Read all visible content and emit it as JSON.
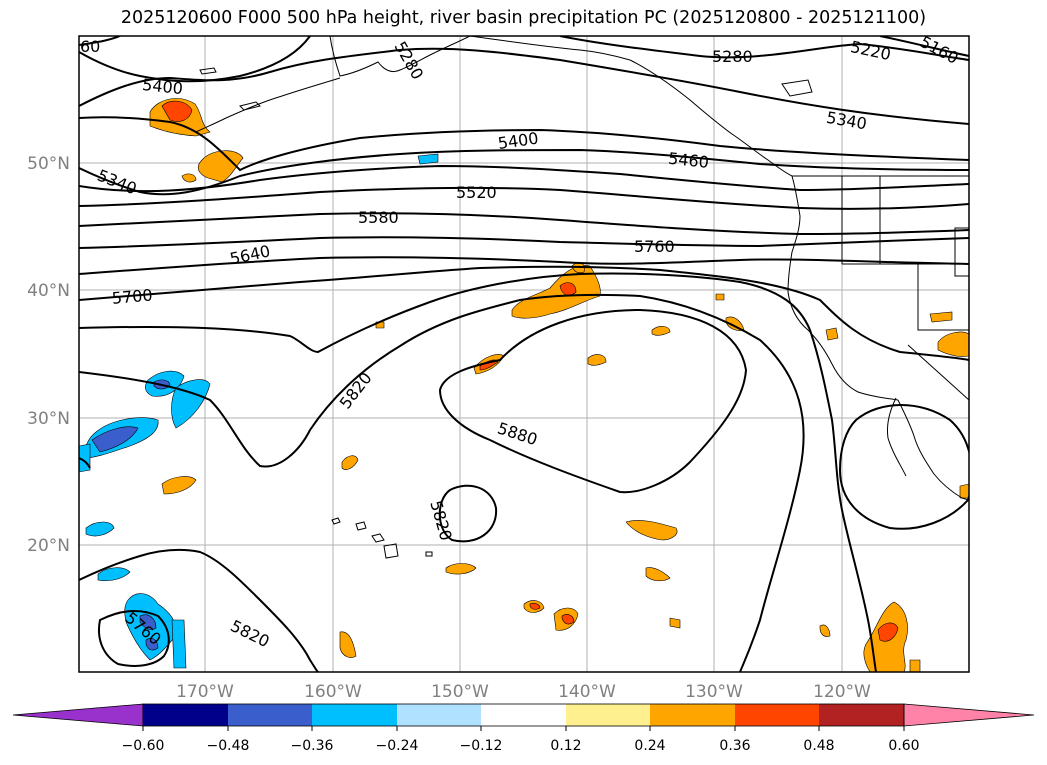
{
  "title": "2025120600 F000 500 hPa height, river basin precipitation PC (2025120800 - 2025121100)",
  "map": {
    "lat_labels": [
      "50°N",
      "40°N",
      "30°N",
      "20°N"
    ],
    "lon_labels": [
      "170°W",
      "160°W",
      "150°W",
      "140°W",
      "130°W",
      "120°W"
    ],
    "contour_labels": [
      "60",
      "5280",
      "5220",
      "5160",
      "5400",
      "5280",
      "5340",
      "5400",
      "5460",
      "5340",
      "5520",
      "5580",
      "5640",
      "5760",
      "5700",
      "5820",
      "5880",
      "5820",
      "5760",
      "5820"
    ]
  },
  "colorbar": {
    "tick_labels": [
      "−0.60",
      "−0.48",
      "−0.36",
      "−0.24",
      "−0.12",
      "0.12",
      "0.24",
      "0.36",
      "0.48",
      "0.60"
    ],
    "colors": [
      "#9932cc",
      "#00008b",
      "#3a5fcd",
      "#00bfff",
      "#b0e2ff",
      "#ffffff",
      "#fff08f",
      "#ffa500",
      "#ff4500",
      "#b22222",
      "#ff83a8"
    ]
  }
}
